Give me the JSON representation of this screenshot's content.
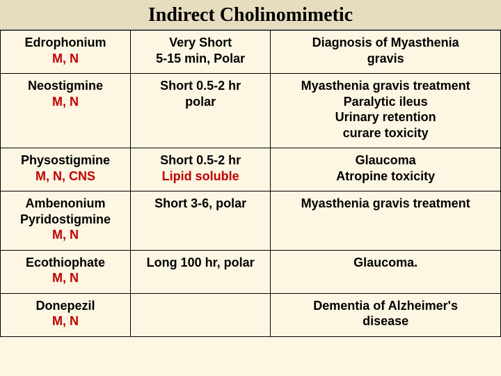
{
  "title": "Indirect Cholinomimetic",
  "colors": {
    "page_bg": "#fdf6e3",
    "title_bg": "#e8dcc0",
    "border": "#000000",
    "text": "#000000",
    "accent": "#c00000"
  },
  "typography": {
    "title_font": "Times New Roman",
    "title_size_pt": 21,
    "body_font": "Arial",
    "body_size_pt": 13,
    "body_weight": "bold"
  },
  "table": {
    "column_widths_pct": [
      26,
      28,
      46
    ],
    "rows": [
      {
        "drug_line1": "Edrophonium",
        "drug_line2": "M, N",
        "dur_line1": "Very Short",
        "dur_line2": "5-15 min, Polar",
        "use_lines": [
          "Diagnosis of Myasthenia",
          "gravis"
        ]
      },
      {
        "drug_line1": "Neostigmine",
        "drug_line2": "M, N",
        "dur_line1": "Short   0.5-2 hr",
        "dur_line2": "polar",
        "use_lines": [
          "Myasthenia gravis treatment",
          "Paralytic ileus",
          "Urinary retention",
          "curare   toxicity"
        ]
      },
      {
        "drug_line1": "Physostigmine",
        "drug_line2": "M, N, CNS",
        "dur_line1": "Short 0.5-2 hr",
        "dur_line2": "Lipid soluble",
        "dur_line2_accent": true,
        "use_lines": [
          "Glaucoma",
          "Atropine toxicity"
        ]
      },
      {
        "drug_line1": "Ambenonium",
        "drug_line1b": "Pyridostigmine",
        "drug_line2": "M, N",
        "dur_line1": "Short     3-6, polar",
        "dur_line2": "",
        "use_lines": [
          "Myasthenia gravis treatment"
        ]
      },
      {
        "drug_line1": "Ecothiophate",
        "drug_line2": "M, N",
        "dur_line1": "Long  100 hr, polar",
        "dur_line2": "",
        "use_lines": [
          "Glaucoma."
        ]
      },
      {
        "drug_line1": "Donepezil",
        "drug_line2": "M, N",
        "dur_line1": "",
        "dur_line2": "",
        "use_lines": [
          "Dementia of Alzheimer's",
          "disease"
        ]
      }
    ]
  }
}
